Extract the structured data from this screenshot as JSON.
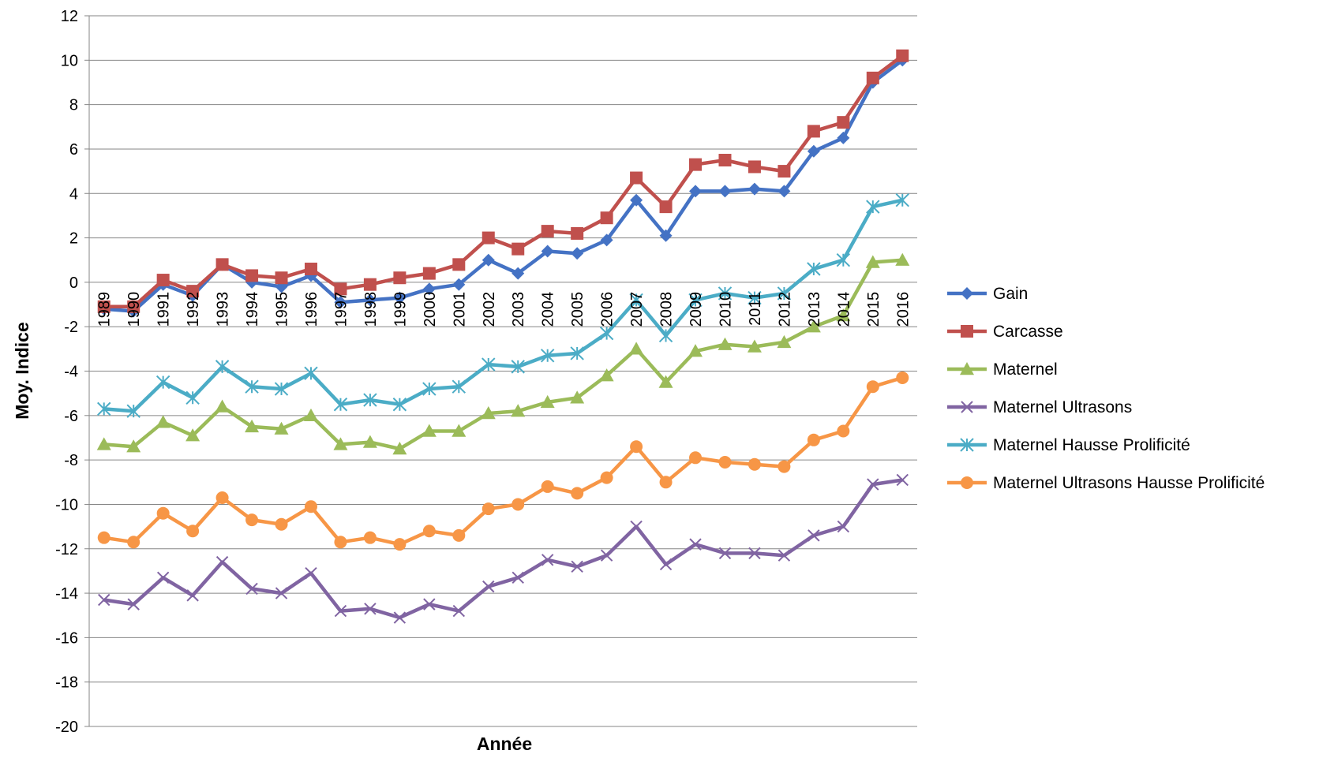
{
  "chart_data": {
    "type": "line",
    "title": "",
    "xlabel": "Année",
    "ylabel": "Moy. Indice",
    "ylim": [
      -20,
      12
    ],
    "ytick_step": 2,
    "grid": "horizontal",
    "legend_position": "right",
    "categories": [
      "1989",
      "1990",
      "1991",
      "1992",
      "1993",
      "1994",
      "1995",
      "1996",
      "1997",
      "1998",
      "1999",
      "2000",
      "2001",
      "2002",
      "2003",
      "2004",
      "2005",
      "2006",
      "2007",
      "2008",
      "2009",
      "2010",
      "2011",
      "2012",
      "2013",
      "2014",
      "2015",
      "2016"
    ],
    "series": [
      {
        "name": "Gain",
        "color": "#4472C4",
        "marker": "diamond",
        "values": [
          -1.2,
          -1.3,
          -0.1,
          -0.6,
          0.8,
          0.0,
          -0.2,
          0.3,
          -0.9,
          -0.8,
          -0.7,
          -0.3,
          -0.1,
          1.0,
          0.4,
          1.4,
          1.3,
          1.9,
          3.7,
          2.1,
          4.1,
          4.1,
          4.2,
          4.1,
          5.9,
          6.5,
          9.0,
          10.0
        ]
      },
      {
        "name": "Carcasse",
        "color": "#C0504D",
        "marker": "square",
        "values": [
          -1.1,
          -1.1,
          0.1,
          -0.4,
          0.8,
          0.3,
          0.2,
          0.6,
          -0.3,
          -0.1,
          0.2,
          0.4,
          0.8,
          2.0,
          1.5,
          2.3,
          2.2,
          2.9,
          4.7,
          3.4,
          5.3,
          5.5,
          5.2,
          5.0,
          6.8,
          7.2,
          9.2,
          10.2
        ]
      },
      {
        "name": "Maternel",
        "color": "#9BBB59",
        "marker": "triangle",
        "values": [
          -7.3,
          -7.4,
          -6.3,
          -6.9,
          -5.6,
          -6.5,
          -6.6,
          -6.0,
          -7.3,
          -7.2,
          -7.5,
          -6.7,
          -6.7,
          -5.9,
          -5.8,
          -5.4,
          -5.2,
          -4.2,
          -3.0,
          -4.5,
          -3.1,
          -2.8,
          -2.9,
          -2.7,
          -2.0,
          -1.5,
          0.9,
          1.0
        ]
      },
      {
        "name": "Maternel Ultrasons",
        "color": "#8064A2",
        "marker": "x",
        "values": [
          -14.3,
          -14.5,
          -13.3,
          -14.1,
          -12.6,
          -13.8,
          -14.0,
          -13.1,
          -14.8,
          -14.7,
          -15.1,
          -14.5,
          -14.8,
          -13.7,
          -13.3,
          -12.5,
          -12.8,
          -12.3,
          -11.0,
          -12.7,
          -11.8,
          -12.2,
          -12.2,
          -12.3,
          -11.4,
          -11.0,
          -9.1,
          -8.9
        ]
      },
      {
        "name": "Maternel Hausse Prolificité",
        "color": "#4BACC6",
        "marker": "asterisk",
        "values": [
          -5.7,
          -5.8,
          -4.5,
          -5.2,
          -3.8,
          -4.7,
          -4.8,
          -4.1,
          -5.5,
          -5.3,
          -5.5,
          -4.8,
          -4.7,
          -3.7,
          -3.8,
          -3.3,
          -3.2,
          -2.3,
          -0.8,
          -2.4,
          -0.8,
          -0.5,
          -0.7,
          -0.5,
          0.6,
          1.0,
          3.4,
          3.7
        ]
      },
      {
        "name": "Maternel Ultrasons Hausse Prolificité",
        "color": "#F79646",
        "marker": "circle",
        "values": [
          -11.5,
          -11.7,
          -10.4,
          -11.2,
          -9.7,
          -10.7,
          -10.9,
          -10.1,
          -11.7,
          -11.5,
          -11.8,
          -11.2,
          -11.4,
          -10.2,
          -10.0,
          -9.2,
          -9.5,
          -8.8,
          -7.4,
          -9.0,
          -7.9,
          -8.1,
          -8.2,
          -8.3,
          -7.1,
          -6.7,
          -4.7,
          -4.3
        ]
      }
    ]
  }
}
